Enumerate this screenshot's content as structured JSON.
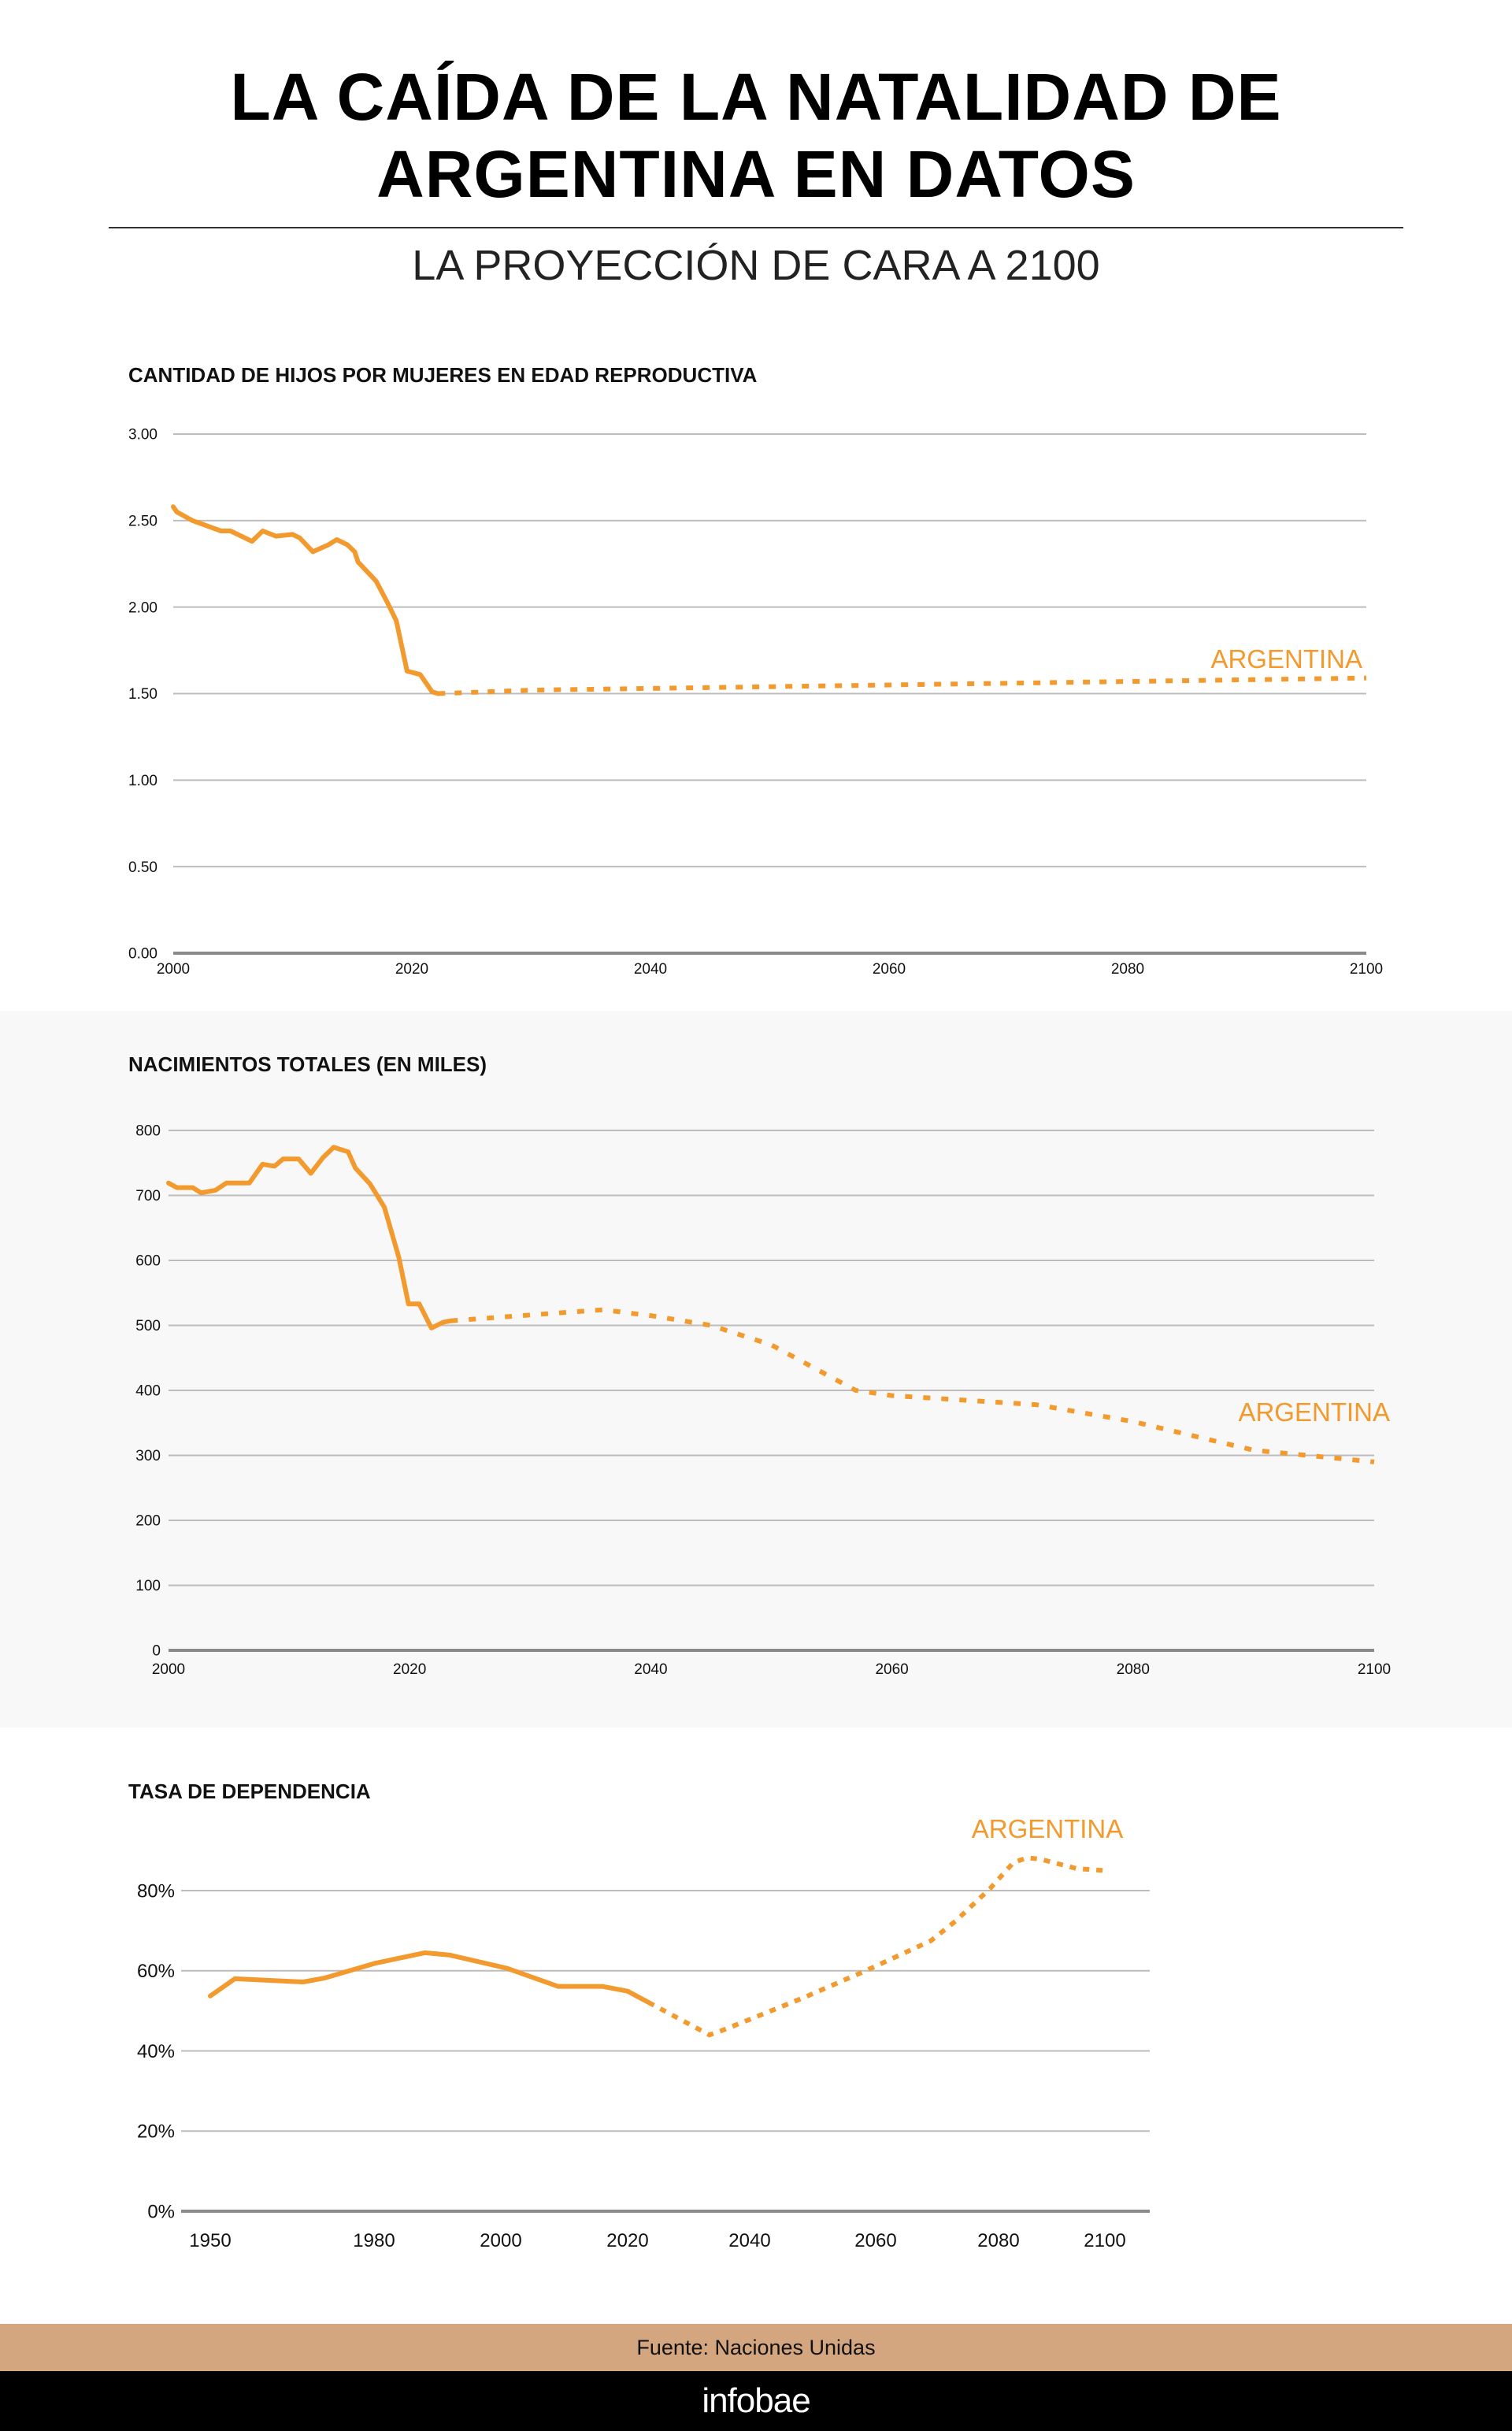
{
  "header": {
    "title_line1": "LA CAÍDA DE LA NATALIDAD DE",
    "title_line2": "ARGENTINA EN DATOS",
    "subtitle": "LA PROYECCIÓN DE CARA A 2100"
  },
  "colors": {
    "series": "#f39a2e",
    "grid": "#bdbdbd",
    "axis": "#8a8a8a",
    "source_bar": "#d4a67f",
    "footer": "#000000",
    "band": "#f8f8f8"
  },
  "chart_data": [
    {
      "type": "line",
      "title": "CANTIDAD DE HIJOS POR MUJERES EN EDAD REPRODUCTIVA",
      "series_label": "ARGENTINA",
      "xlim": [
        2000,
        2100
      ],
      "ylim": [
        0,
        3
      ],
      "x_ticks": [
        "2000",
        "2020",
        "2040",
        "2060",
        "2080",
        "2100"
      ],
      "y_ticks": [
        "0.00",
        "0.50",
        "1.00",
        "1.50",
        "2.00",
        "2.50",
        "3.00"
      ],
      "grid": true,
      "observed": [
        [
          2000,
          2.58
        ],
        [
          2000.3,
          2.55
        ],
        [
          2001.6,
          2.5
        ],
        [
          2004,
          2.44
        ],
        [
          2004.8,
          2.44
        ],
        [
          2006.6,
          2.38
        ],
        [
          2007.5,
          2.44
        ],
        [
          2008.6,
          2.41
        ],
        [
          2010,
          2.42
        ],
        [
          2010.6,
          2.4
        ],
        [
          2011.7,
          2.32
        ],
        [
          2013,
          2.36
        ],
        [
          2013.7,
          2.39
        ],
        [
          2014.6,
          2.36
        ],
        [
          2015.2,
          2.32
        ],
        [
          2015.5,
          2.26
        ],
        [
          2017,
          2.15
        ],
        [
          2018,
          2.02
        ],
        [
          2018.7,
          1.92
        ],
        [
          2019.6,
          1.63
        ],
        [
          2020.7,
          1.61
        ],
        [
          2021.7,
          1.51
        ],
        [
          2022.2,
          1.5
        ]
      ],
      "projected": [
        [
          2022.2,
          1.5
        ],
        [
          2030,
          1.52
        ],
        [
          2040,
          1.53
        ],
        [
          2060,
          1.55
        ],
        [
          2080,
          1.57
        ],
        [
          2100,
          1.59
        ]
      ]
    },
    {
      "type": "line",
      "title": "NACIMIENTOS TOTALES (EN MILES)",
      "series_label": "ARGENTINA",
      "xlim": [
        2000,
        2100
      ],
      "ylim": [
        0,
        800
      ],
      "x_ticks": [
        "2000",
        "2020",
        "2040",
        "2060",
        "2080",
        "2100"
      ],
      "y_ticks": [
        "0",
        "100",
        "200",
        "300",
        "400",
        "500",
        "600",
        "700",
        "800"
      ],
      "grid": true,
      "observed": [
        [
          2000,
          719
        ],
        [
          2000.7,
          712
        ],
        [
          2002,
          712
        ],
        [
          2002.7,
          704
        ],
        [
          2003.9,
          708
        ],
        [
          2004.8,
          719
        ],
        [
          2006.7,
          719
        ],
        [
          2007.8,
          748
        ],
        [
          2008.8,
          745
        ],
        [
          2009.5,
          756
        ],
        [
          2010.8,
          756
        ],
        [
          2011.8,
          734
        ],
        [
          2012.8,
          758
        ],
        [
          2013.7,
          774
        ],
        [
          2014.9,
          767
        ],
        [
          2015.5,
          742
        ],
        [
          2016.7,
          718
        ],
        [
          2017.9,
          682
        ],
        [
          2019.1,
          605
        ],
        [
          2019.9,
          533
        ],
        [
          2020.8,
          533
        ],
        [
          2021.8,
          496
        ],
        [
          2022.8,
          505
        ],
        [
          2023.4,
          507
        ]
      ],
      "projected": [
        [
          2023.4,
          507
        ],
        [
          2030,
          516
        ],
        [
          2036,
          524
        ],
        [
          2040,
          515
        ],
        [
          2045,
          500
        ],
        [
          2050,
          470
        ],
        [
          2057,
          400
        ],
        [
          2060,
          392
        ],
        [
          2072,
          378
        ],
        [
          2080,
          352
        ],
        [
          2090,
          308
        ],
        [
          2100,
          290
        ]
      ]
    },
    {
      "type": "line",
      "title": "TASA DE DEPENDENCIA",
      "series_label": "ARGENTINA",
      "ylim": [
        0,
        80
      ],
      "x_ticks": [
        "1950",
        "1980",
        "2000",
        "2020",
        "2040",
        "2060",
        "2080",
        "2100"
      ],
      "y_ticks": [
        "0%",
        "20%",
        "40%",
        "60%",
        "80%"
      ],
      "grid": true,
      "observed": [
        [
          1950,
          53.7
        ],
        [
          1954.5,
          58.0
        ],
        [
          1967,
          57.2
        ],
        [
          1971,
          58.2
        ],
        [
          1980,
          61.8
        ],
        [
          1988,
          64.5
        ],
        [
          1992,
          63.9
        ],
        [
          2001,
          60.6
        ],
        [
          2009,
          56.1
        ],
        [
          2016,
          56.1
        ],
        [
          2020,
          54.9
        ],
        [
          2023.4,
          52.1
        ]
      ],
      "projected": [
        [
          2023.4,
          52.1
        ],
        [
          2033.4,
          44.0
        ],
        [
          2036,
          45.4
        ],
        [
          2048.6,
          53.3
        ],
        [
          2058.7,
          60.2
        ],
        [
          2069,
          67.5
        ],
        [
          2073,
          72.4
        ],
        [
          2078.6,
          80.5
        ],
        [
          2082.8,
          87.0
        ],
        [
          2085.4,
          88.2
        ],
        [
          2088,
          87.8
        ],
        [
          2094.7,
          85.5
        ],
        [
          2100,
          85.0
        ]
      ]
    }
  ],
  "source": "Fuente: Naciones Unidas",
  "footer": {
    "logo": "infobae"
  }
}
